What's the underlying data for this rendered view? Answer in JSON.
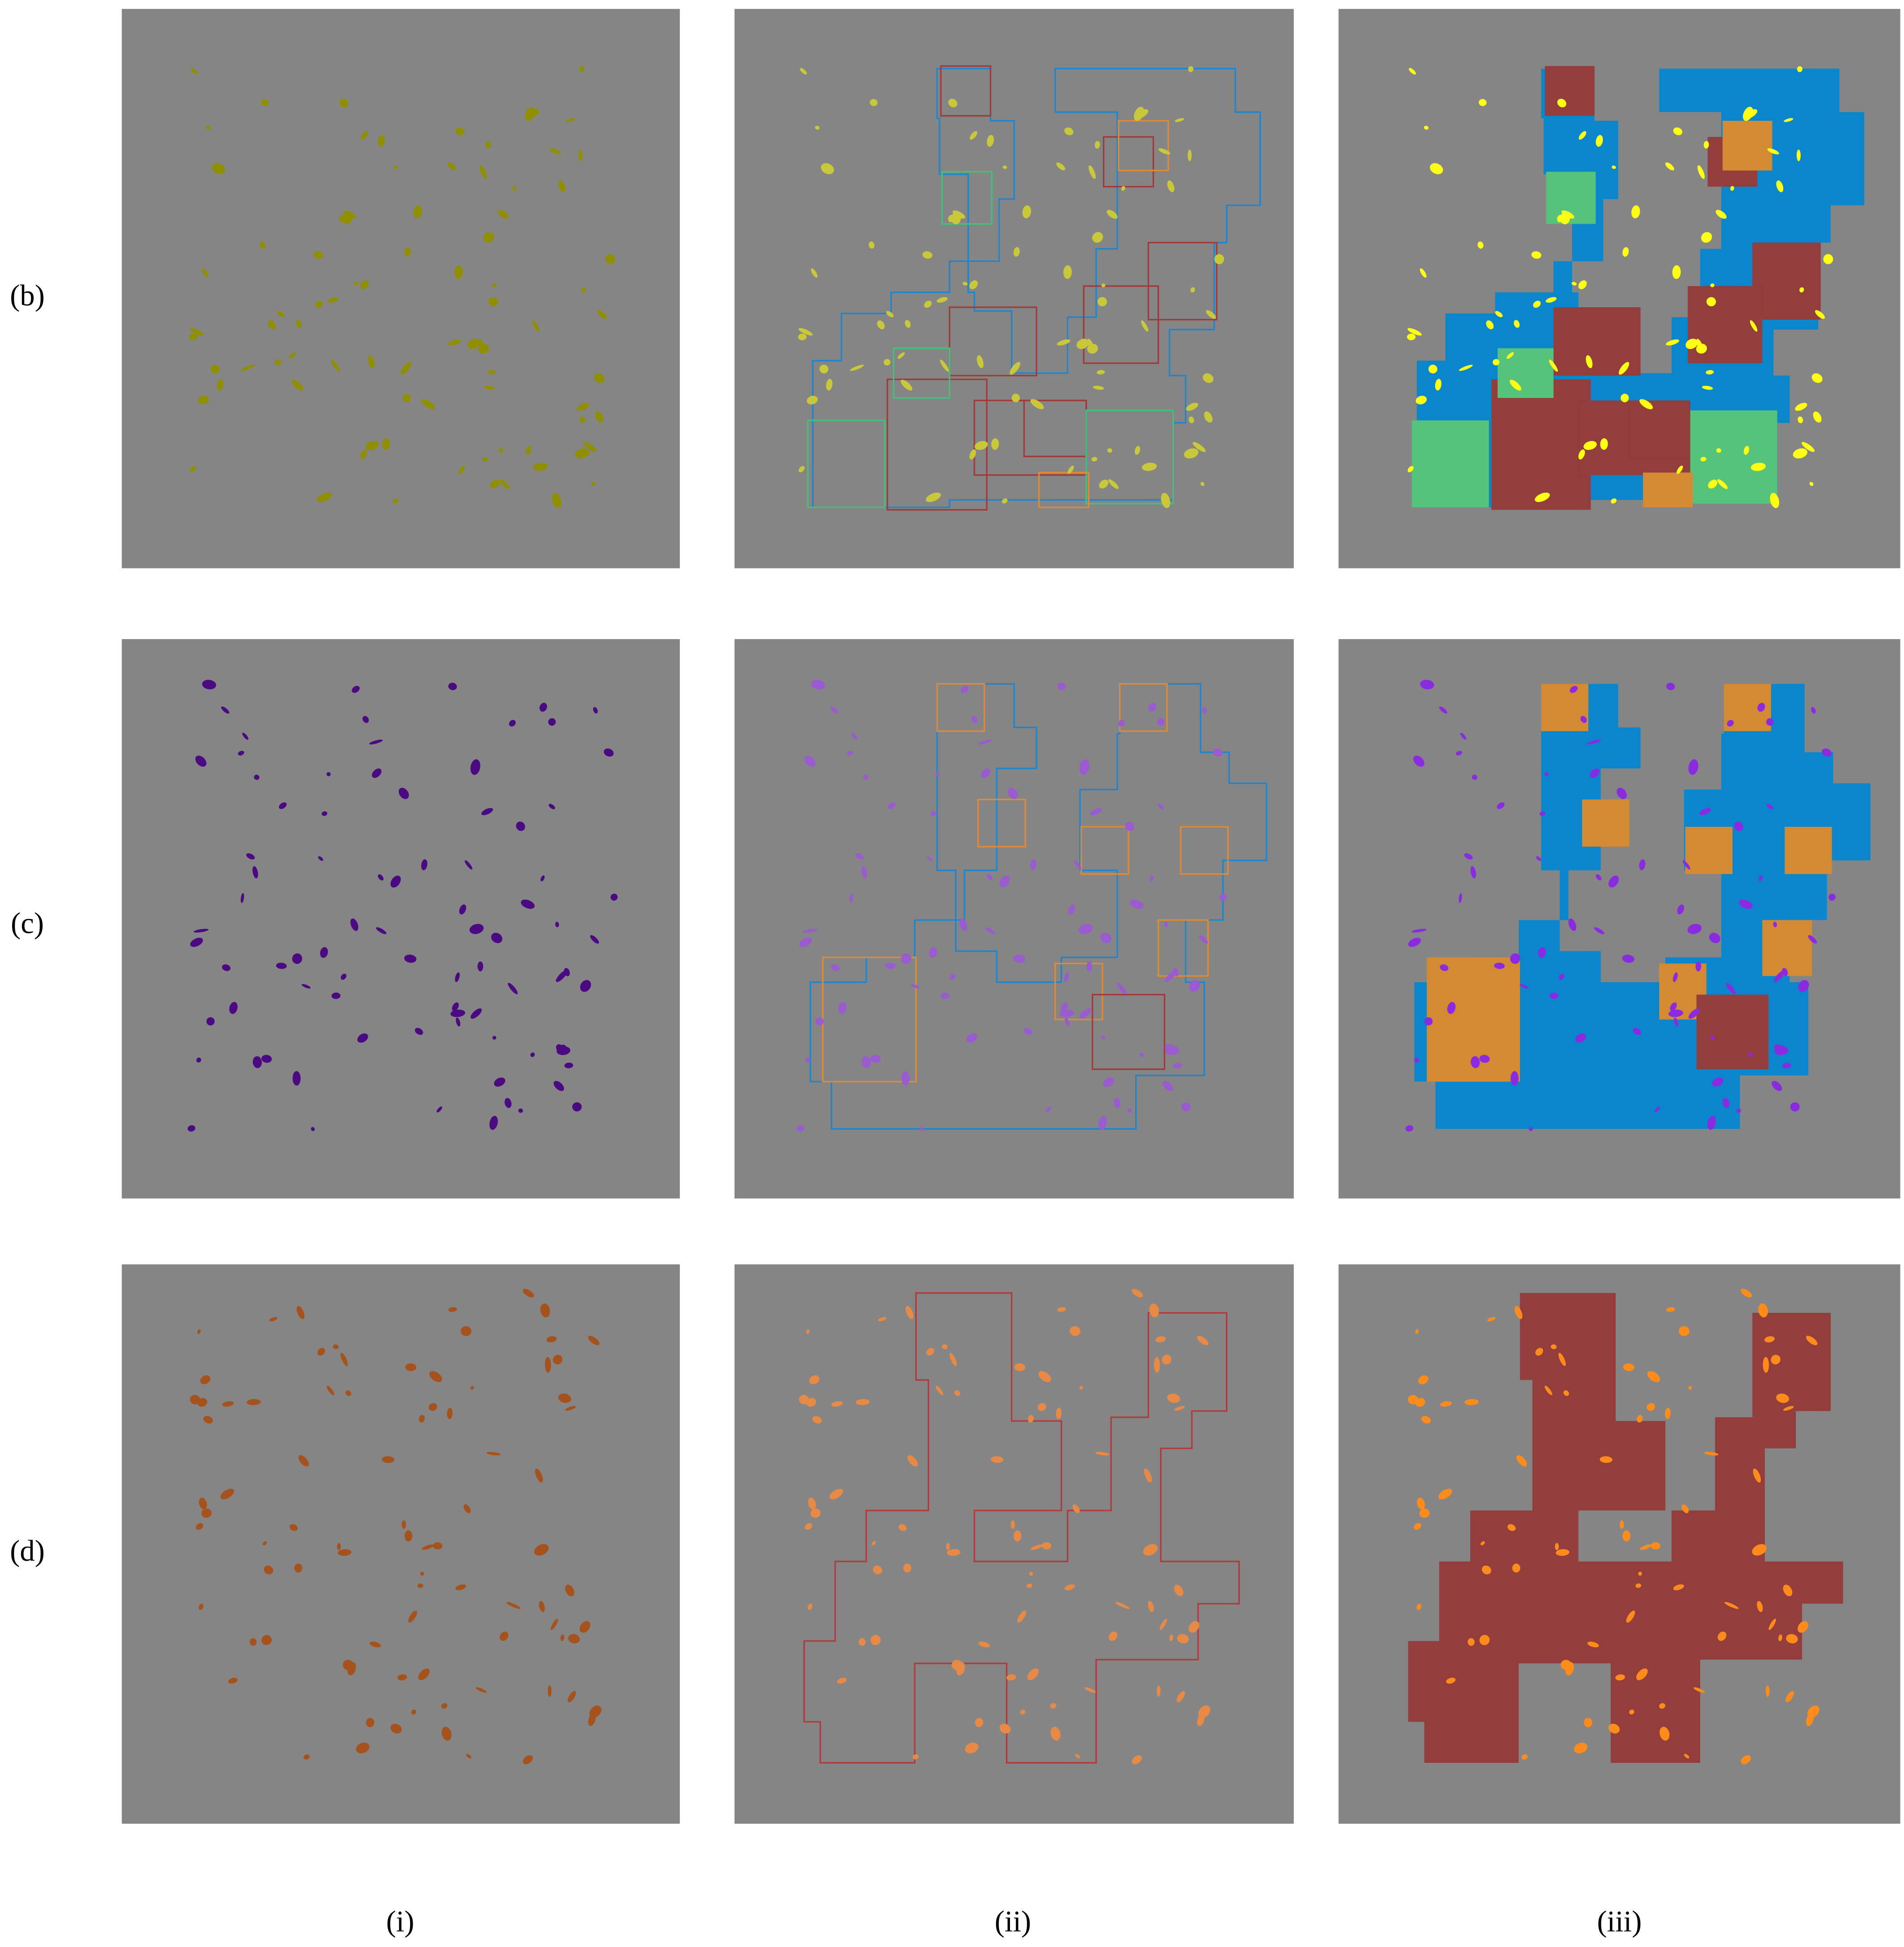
{
  "row_labels": [
    "(b)",
    "(c)",
    "(d)"
  ],
  "column_labels": [
    "(i)",
    "(ii)",
    "(iii)"
  ]
}
